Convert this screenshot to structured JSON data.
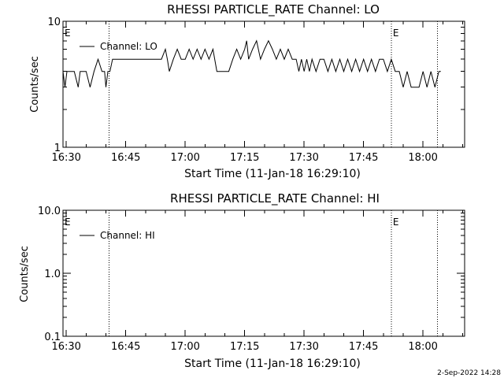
{
  "footer_date": "2-Sep-2022 14:28",
  "chart_data": [
    {
      "type": "line",
      "title": "RHESSI PARTICLE_RATE Channel: LO",
      "xlabel": "Start Time (11-Jan-18 16:29:10)",
      "ylabel": "Counts/sec",
      "y_scale": "log",
      "ylim": [
        1,
        10
      ],
      "xlim": [
        "16:29:10",
        "18:10:30"
      ],
      "x_ticks": [
        "16:30",
        "16:45",
        "17:00",
        "17:15",
        "17:30",
        "17:45",
        "18:00"
      ],
      "y_ticks": [
        "1",
        "10"
      ],
      "legend": {
        "position": "top-left",
        "entries": [
          "Channel: LO"
        ]
      },
      "vertical_markers": [
        {
          "time": "16:40:50",
          "label": ""
        },
        {
          "time": "17:52:00",
          "label": "E"
        },
        {
          "time": "18:03:40",
          "label": ""
        },
        {
          "time": "16:29:10",
          "label": "E"
        }
      ],
      "series": [
        {
          "name": "Channel: LO",
          "x": [
            "16:29:10",
            "16:29:40",
            "16:30:10",
            "16:30:40",
            "16:31:10",
            "16:32:00",
            "16:33:00",
            "16:33:30",
            "16:34:00",
            "16:34:30",
            "16:35:00",
            "16:36:00",
            "16:37:00",
            "16:38:00",
            "16:39:00",
            "16:39:40",
            "16:40:00",
            "16:40:30",
            "16:41:00",
            "16:41:40",
            "16:42:30",
            "16:43:00",
            "16:44:00",
            "16:45:00",
            "16:50:00",
            "16:54:00",
            "16:55:00",
            "16:55:30",
            "16:56:00",
            "16:57:00",
            "16:58:00",
            "16:59:00",
            "17:00:00",
            "17:01:00",
            "17:02:00",
            "17:03:00",
            "17:04:00",
            "17:05:00",
            "17:06:00",
            "17:07:00",
            "17:08:00",
            "17:11:00",
            "17:12:00",
            "17:13:00",
            "17:14:00",
            "17:15:00",
            "17:15:30",
            "17:16:00",
            "17:17:00",
            "17:18:00",
            "17:19:00",
            "17:20:00",
            "17:21:00",
            "17:22:00",
            "17:23:00",
            "17:24:00",
            "17:25:00",
            "17:26:00",
            "17:27:00",
            "17:28:00",
            "17:28:40",
            "17:29:20",
            "17:30:00",
            "17:30:40",
            "17:31:20",
            "17:32:00",
            "17:33:00",
            "17:34:00",
            "17:35:00",
            "17:36:00",
            "17:37:00",
            "17:38:00",
            "17:39:00",
            "17:40:00",
            "17:41:00",
            "17:42:00",
            "17:43:00",
            "17:44:00",
            "17:45:00",
            "17:46:00",
            "17:47:00",
            "17:48:00",
            "17:49:00",
            "17:50:00",
            "17:51:00",
            "17:52:00",
            "17:53:00",
            "17:54:00",
            "17:55:00",
            "17:56:00",
            "17:57:00",
            "17:58:00",
            "17:59:00",
            "18:00:00",
            "18:01:00",
            "18:02:00",
            "18:03:00",
            "18:04:00",
            "18:04:30"
          ],
          "values": [
            4,
            3,
            4,
            4,
            4,
            4,
            3,
            4,
            4,
            4,
            4,
            3,
            4,
            5,
            4,
            4,
            3,
            4,
            4,
            5,
            5,
            5,
            5,
            5,
            5,
            5,
            6,
            5,
            4,
            5,
            6,
            5,
            5,
            6,
            5,
            6,
            5,
            6,
            5,
            6,
            4,
            4,
            5,
            6,
            5,
            6,
            7,
            5,
            6,
            7,
            5,
            6,
            7,
            6,
            5,
            6,
            5,
            6,
            5,
            5,
            4,
            5,
            4,
            5,
            4,
            5,
            4,
            5,
            5,
            4,
            5,
            4,
            5,
            4,
            5,
            4,
            5,
            4,
            5,
            4,
            5,
            4,
            5,
            5,
            4,
            5,
            4,
            4,
            3,
            4,
            3,
            3,
            3,
            4,
            3,
            4,
            3,
            4,
            4
          ]
        }
      ]
    },
    {
      "type": "line",
      "title": "RHESSI PARTICLE_RATE Channel: HI",
      "xlabel": "Start Time (11-Jan-18 16:29:10)",
      "ylabel": "Counts/sec",
      "y_scale": "log",
      "ylim": [
        0.1,
        10
      ],
      "xlim": [
        "16:29:10",
        "18:10:30"
      ],
      "x_ticks": [
        "16:30",
        "16:45",
        "17:00",
        "17:15",
        "17:30",
        "17:45",
        "18:00"
      ],
      "y_ticks": [
        "0.1",
        "1.0",
        "10.0"
      ],
      "legend": {
        "position": "top-left",
        "entries": [
          "Channel: HI"
        ]
      },
      "vertical_markers": [
        {
          "time": "16:40:50",
          "label": ""
        },
        {
          "time": "17:52:00",
          "label": "E"
        },
        {
          "time": "18:03:40",
          "label": ""
        },
        {
          "time": "16:29:10",
          "label": "E"
        }
      ],
      "series": [
        {
          "name": "Channel: HI",
          "x": [],
          "values": []
        }
      ]
    }
  ]
}
